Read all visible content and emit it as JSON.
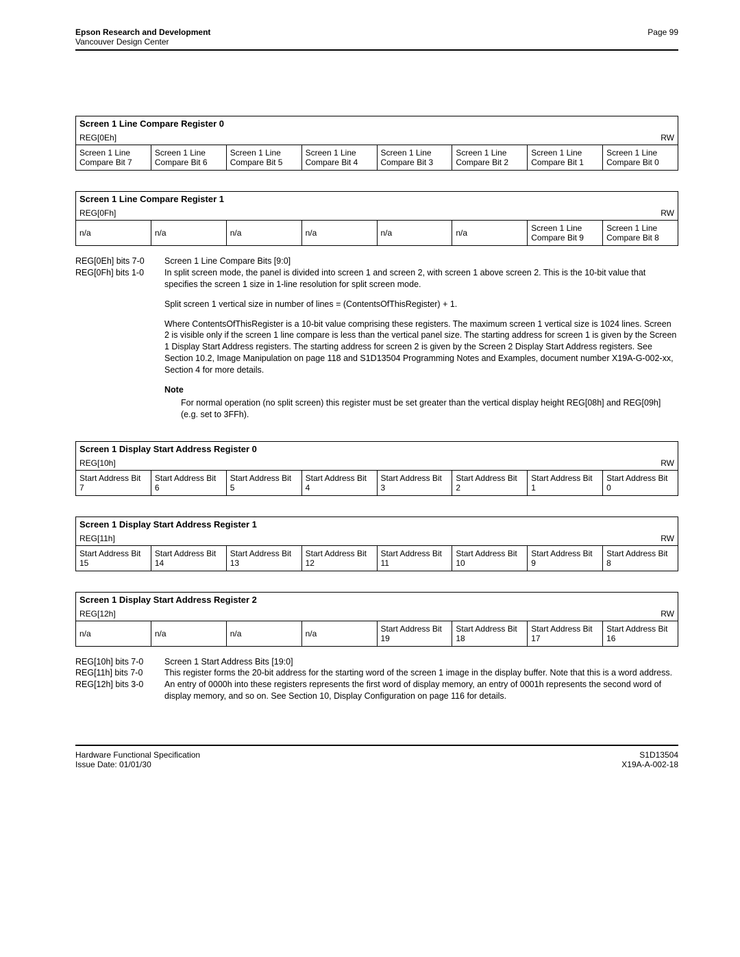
{
  "header": {
    "org": "Epson Research and Development",
    "sub": "Vancouver Design Center",
    "page_label": "Page 99"
  },
  "footer": {
    "left1": "Hardware Functional Specification",
    "left2": "Issue Date: 01/01/30",
    "right1": "S1D13504",
    "right2": "X19A-A-002-18"
  },
  "reg0e": {
    "title": "Screen 1 Line Compare Register 0",
    "name": "REG[0Eh]",
    "access": "RW",
    "bits": [
      "Screen 1 Line Compare Bit 7",
      "Screen 1 Line Compare Bit 6",
      "Screen 1 Line Compare Bit 5",
      "Screen 1 Line Compare Bit 4",
      "Screen 1 Line Compare Bit 3",
      "Screen 1 Line Compare Bit 2",
      "Screen 1 Line Compare Bit 1",
      "Screen 1 Line Compare Bit 0"
    ]
  },
  "reg0f": {
    "title": "Screen 1 Line Compare Register 1",
    "name": "REG[0Fh]",
    "access": "RW",
    "bits": [
      "n/a",
      "n/a",
      "n/a",
      "n/a",
      "n/a",
      "n/a",
      "Screen 1 Line Compare Bit 9",
      "Screen 1 Line Compare Bit 8"
    ]
  },
  "desc1": {
    "l1": "REG[0Eh] bits 7-0",
    "l2": "REG[0Fh] bits 1-0",
    "t1": "Screen 1 Line Compare Bits [9:0]",
    "p1": "In split screen mode, the panel is divided into screen 1 and screen 2, with screen 1 above screen 2. This is the 10-bit value that specifies the screen 1 size in 1-line resolution for split screen mode.",
    "p2": "Split screen 1 vertical size in number of lines = (ContentsOfThisRegister) + 1.",
    "p3": "Where ContentsOfThisRegister is a 10-bit value comprising these registers. The maximum screen 1 vertical size is 1024 lines. Screen 2 is visible only if the screen 1 line compare is less than the vertical panel size. The starting address for screen 1 is given by the Screen 1 Display Start Address registers. The starting address for screen 2 is given by the Screen 2 Display Start Address registers. See Section 10.2, Image Manipulation  on page 118 and S1D13504 Programming Notes and Examples, document number X19A-G-002-xx, Section 4 for more details.",
    "note_label": "Note",
    "note": "For normal operation (no split screen) this register must be set greater than the vertical display height REG[08h] and REG[09h] (e.g. set to 3FFh)."
  },
  "reg10": {
    "title": "Screen 1 Display Start Address Register 0",
    "name": "REG[10h]",
    "access": "RW",
    "bits": [
      "Start Address Bit 7",
      "Start Address Bit 6",
      "Start Address Bit 5",
      "Start Address Bit 4",
      "Start Address Bit 3",
      "Start Address Bit 2",
      "Start Address Bit 1",
      "Start Address Bit 0"
    ]
  },
  "reg11": {
    "title": "Screen 1 Display Start Address Register 1",
    "name": "REG[11h]",
    "access": "RW",
    "bits": [
      "Start Address Bit 15",
      "Start Address Bit 14",
      "Start Address Bit 13",
      "Start Address Bit 12",
      "Start Address Bit 11",
      "Start Address Bit 10",
      "Start Address Bit 9",
      "Start Address Bit 8"
    ]
  },
  "reg12": {
    "title": "Screen 1 Display Start Address Register 2",
    "name": "REG[12h]",
    "access": "RW",
    "bits": [
      "n/a",
      "n/a",
      "n/a",
      "n/a",
      "Start Address Bit 19",
      "Start Address Bit 18",
      "Start Address Bit 17",
      "Start Address Bit 16"
    ]
  },
  "desc2": {
    "l1": "REG[10h] bits 7-0",
    "l2": "REG[11h] bits 7-0",
    "l3": "REG[12h] bits 3-0",
    "t1": "Screen 1 Start Address Bits [19:0]",
    "p1": "This register forms the 20-bit address for the starting word of the screen 1 image in the display buffer. Note that this is a word address. An entry of 0000h into these registers represents the first word of display memory, an entry of 0001h represents the second word of display memory, and so on. See Section 10, Display Configuration  on page 116 for details."
  }
}
